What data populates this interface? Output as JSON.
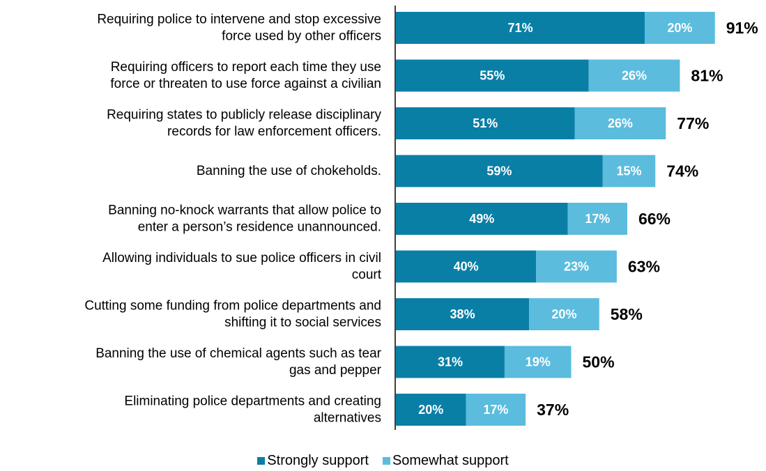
{
  "chart_data": {
    "type": "bar",
    "orientation": "horizontal",
    "stacked": true,
    "categories": [
      [
        "Requiring police to intervene and stop excessive",
        "force used by other officers"
      ],
      [
        "Requiring officers to report each time they use",
        "force or threaten to use force against a civilian"
      ],
      [
        "Requiring states to publicly release disciplinary",
        "records for law enforcement officers."
      ],
      [
        "Banning the use of chokeholds."
      ],
      [
        "Banning no-knock warrants that allow police to",
        "enter a person’s residence unannounced."
      ],
      [
        "Allowing individuals to sue police officers in civil",
        "court"
      ],
      [
        "Cutting some funding from police departments and",
        "shifting it to social services"
      ],
      [
        "Banning the use of chemical agents such as tear",
        "gas and pepper"
      ],
      [
        "Eliminating police departments and creating",
        "alternatives"
      ]
    ],
    "series": [
      {
        "name": "Strongly support",
        "color": "#0a7fa6",
        "values": [
          71,
          55,
          51,
          59,
          49,
          40,
          38,
          31,
          20
        ],
        "labels": [
          "71%",
          "55%",
          "51%",
          "59%",
          "49%",
          "40%",
          "38%",
          "31%",
          "20%"
        ]
      },
      {
        "name": "Somewhat support",
        "color": "#5bbcde",
        "values": [
          20,
          26,
          26,
          15,
          17,
          23,
          20,
          19,
          17
        ],
        "labels": [
          "20%",
          "26%",
          "26%",
          "15%",
          "17%",
          "23%",
          "20%",
          "19%",
          "17%"
        ]
      }
    ],
    "totals": [
      91,
      81,
      77,
      74,
      66,
      63,
      58,
      50,
      37
    ],
    "total_labels": [
      "91%",
      "81%",
      "77%",
      "74%",
      "66%",
      "63%",
      "58%",
      "50%",
      "37%"
    ],
    "xlim": [
      0,
      100
    ],
    "legend_position": "bottom-center",
    "grid": false
  },
  "legend": {
    "items": [
      {
        "label": "Strongly support",
        "color": "#0a7fa6"
      },
      {
        "label": "Somewhat support",
        "color": "#5bbcde"
      }
    ]
  }
}
